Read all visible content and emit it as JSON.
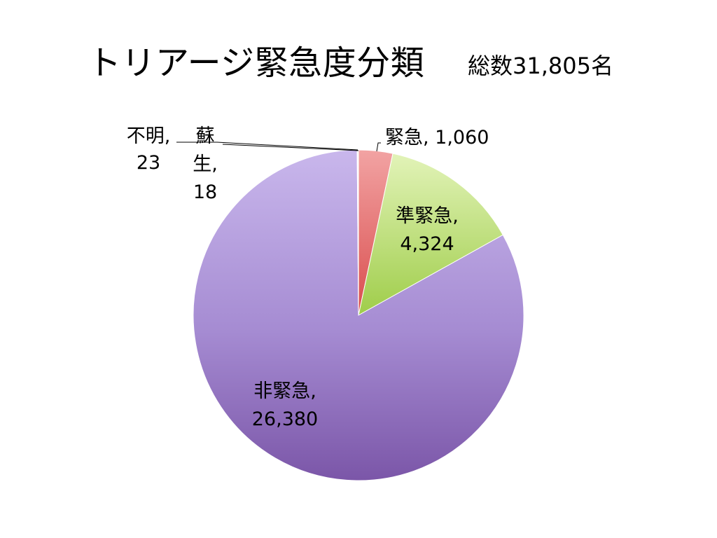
{
  "slide": {
    "title": "トリアージ緊急度分類",
    "total": "総数31,805名"
  },
  "chart_data": {
    "type": "pie",
    "title": "トリアージ緊急度分類",
    "start_angle_deg": 0,
    "direction": "clockwise",
    "slices": [
      {
        "name": "緊急",
        "value": 1060,
        "label_lines": [
          "緊急, 1,060"
        ],
        "color": "#e86a6a"
      },
      {
        "name": "準緊急",
        "value": 4324,
        "label_lines": [
          "準緊急,",
          "4,324"
        ],
        "color": "#b6dc62"
      },
      {
        "name": "非緊急",
        "value": 26380,
        "label_lines": [
          "非緊急,",
          "26,380"
        ],
        "color": "#a58bd2"
      },
      {
        "name": "不明",
        "value": 23,
        "label_lines": [
          "不明,",
          "23"
        ],
        "color": "#4f81bd"
      },
      {
        "name": "蘇生",
        "value": 18,
        "label_lines": [
          "蘇",
          "生,",
          "18"
        ],
        "color": "#4bacc6"
      }
    ]
  }
}
